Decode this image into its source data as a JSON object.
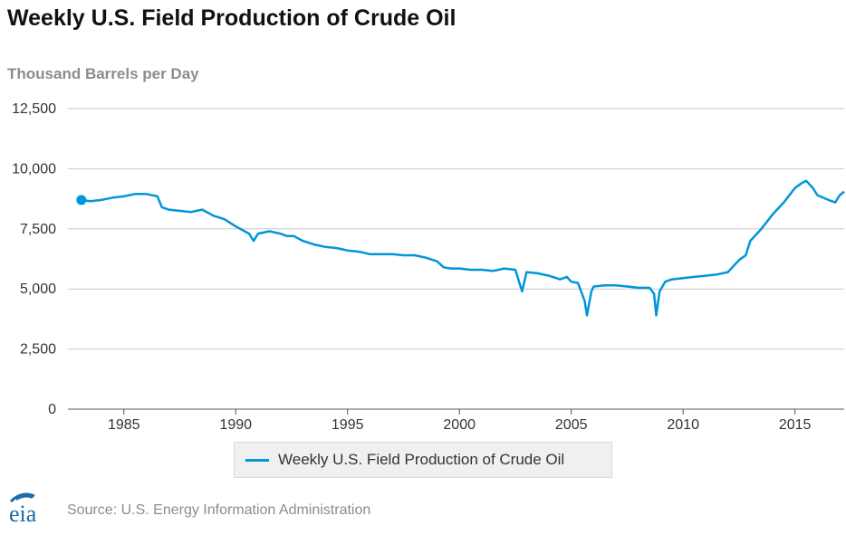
{
  "title": "Weekly U.S. Field Production of Crude Oil",
  "units_label": "Thousand Barrels per Day",
  "source": "Source: U.S. Energy Information Administration",
  "logo_text": "eia",
  "colors": {
    "series": "#0096d7",
    "grid": "#c8c8c8",
    "axis": "#555555",
    "logo": "#1d6aa5"
  },
  "chart_data": {
    "type": "line",
    "title": "Weekly U.S. Field Production of Crude Oil",
    "ylabel": "Thousand Barrels per Day",
    "xlabel": "",
    "ylim": [
      0,
      12500
    ],
    "xlim": [
      1982.5,
      2017.2
    ],
    "yticks": [
      0,
      2500,
      5000,
      7500,
      10000,
      12500
    ],
    "ytick_labels": [
      "0",
      "2,500",
      "5,000",
      "7,500",
      "10,000",
      "12,500"
    ],
    "xticks": [
      1985,
      1990,
      1995,
      2000,
      2005,
      2010,
      2015
    ],
    "xtick_labels": [
      "1985",
      "1990",
      "1995",
      "2000",
      "2005",
      "2010",
      "2015"
    ],
    "grid": "horizontal",
    "legend_position": "bottom",
    "series": [
      {
        "name": "Weekly U.S. Field Production of Crude Oil",
        "start_marker": true,
        "x": [
          1983.1,
          1983.5,
          1984.0,
          1984.5,
          1985.0,
          1985.5,
          1986.0,
          1986.5,
          1986.7,
          1987.0,
          1987.5,
          1988.0,
          1988.5,
          1989.0,
          1989.5,
          1990.0,
          1990.3,
          1990.6,
          1990.8,
          1991.0,
          1991.5,
          1992.0,
          1992.3,
          1992.6,
          1993.0,
          1993.5,
          1994.0,
          1994.5,
          1995.0,
          1995.5,
          1996.0,
          1996.5,
          1997.0,
          1997.5,
          1998.0,
          1998.5,
          1999.0,
          1999.3,
          1999.6,
          2000.0,
          2000.5,
          2001.0,
          2001.5,
          2002.0,
          2002.5,
          2002.8,
          2003.0,
          2003.5,
          2004.0,
          2004.5,
          2004.8,
          2005.0,
          2005.3,
          2005.6,
          2005.7,
          2005.9,
          2006.0,
          2006.5,
          2007.0,
          2007.5,
          2008.0,
          2008.5,
          2008.7,
          2008.8,
          2008.95,
          2009.2,
          2009.5,
          2010.0,
          2010.5,
          2011.0,
          2011.5,
          2012.0,
          2012.5,
          2012.8,
          2013.0,
          2013.5,
          2014.0,
          2014.5,
          2015.0,
          2015.3,
          2015.5,
          2015.8,
          2016.0,
          2016.5,
          2016.8,
          2017.0,
          2017.2
        ],
        "y": [
          8700,
          8650,
          8700,
          8800,
          8850,
          8950,
          8950,
          8850,
          8400,
          8300,
          8250,
          8200,
          8300,
          8050,
          7900,
          7600,
          7450,
          7300,
          7000,
          7300,
          7400,
          7300,
          7200,
          7200,
          7000,
          6850,
          6750,
          6700,
          6600,
          6550,
          6450,
          6450,
          6450,
          6400,
          6400,
          6300,
          6150,
          5900,
          5850,
          5850,
          5800,
          5800,
          5750,
          5850,
          5800,
          4900,
          5700,
          5650,
          5550,
          5400,
          5500,
          5300,
          5250,
          4500,
          3900,
          4900,
          5100,
          5150,
          5150,
          5100,
          5050,
          5050,
          4800,
          3900,
          4900,
          5300,
          5400,
          5450,
          5500,
          5550,
          5600,
          5700,
          6200,
          6400,
          7000,
          7500,
          8100,
          8600,
          9200,
          9400,
          9500,
          9200,
          8900,
          8700,
          8600,
          8900,
          9050
        ]
      }
    ]
  }
}
